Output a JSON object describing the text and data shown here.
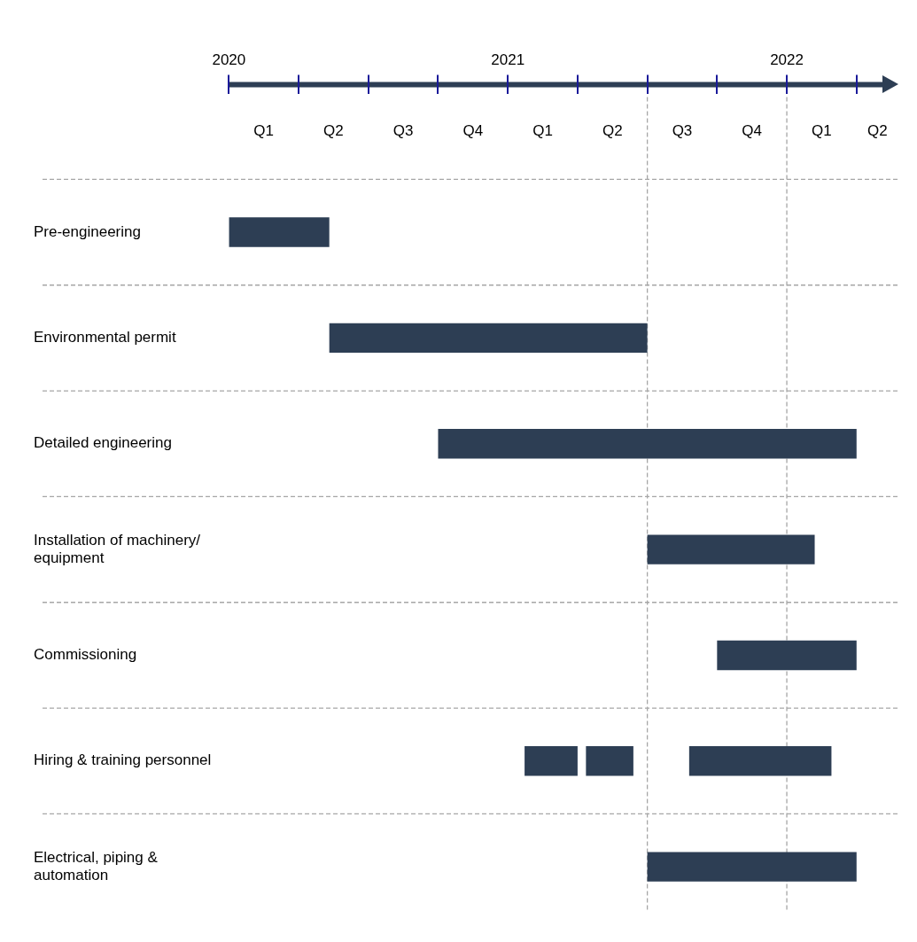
{
  "chart_data": {
    "type": "bar",
    "orientation": "horizontal",
    "categories": [
      "Pre-engineering",
      "Environmental permit",
      "Detailed engineering",
      "Installation of machinery/ equipment",
      "Commissioning",
      "Hiring & training personnel",
      "Electrical, piping & automation"
    ],
    "series": [
      {
        "color": "#2d3e54",
        "base": [
          2020,
          2020.36,
          2020.75,
          2021.5,
          2021.75,
          2021.06,
          2021.5
        ],
        "values": [
          0.36,
          1.14,
          1.5,
          0.6,
          0.5,
          0.19,
          0.75
        ]
      },
      {
        "color": "#2d3e54",
        "base": [
          null,
          null,
          null,
          null,
          null,
          2021.28,
          null
        ],
        "values": [
          null,
          null,
          null,
          null,
          null,
          0.17,
          null
        ]
      },
      {
        "color": "#2d3e54",
        "base": [
          null,
          null,
          null,
          null,
          null,
          2021.65,
          null
        ],
        "values": [
          null,
          null,
          null,
          null,
          null,
          0.51,
          null
        ]
      }
    ],
    "xlim": [
      2020,
      2022.4
    ],
    "xticks": [
      2020,
      2021,
      2022
    ],
    "annotations": [
      "Q1",
      "Q2",
      "Q3",
      "Q4",
      "Q1",
      "Q2",
      "Q3",
      "Q4",
      "Q1",
      "Q2"
    ],
    "ref_lines": [
      {
        "axis": "x",
        "value": 2021.5,
        "color": "#a6a6a6",
        "line_style": "dashed"
      },
      {
        "axis": "x",
        "value": 2022,
        "color": "#a6a6a6",
        "line_style": "dashed"
      }
    ],
    "grid": "y",
    "legend": false
  }
}
